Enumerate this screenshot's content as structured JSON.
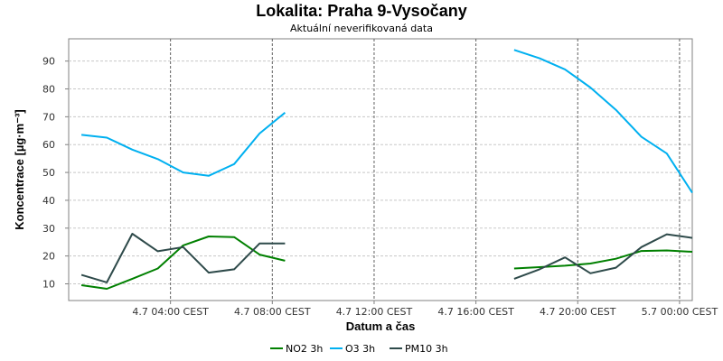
{
  "chart_data": {
    "type": "line",
    "title": "Lokalita: Praha 9-Vysočany",
    "subtitle": "Aktuální neverifikovaná data",
    "xlabel": "Datum a čas",
    "ylabel": "Koncentrace [µg·m⁻³]",
    "ylim": [
      4,
      98
    ],
    "yticks": [
      10,
      20,
      30,
      40,
      50,
      60,
      70,
      80,
      90
    ],
    "xlim": [
      0,
      24.5
    ],
    "x_unit": "hours since 4.7 00:00 CEST",
    "xticks": [
      {
        "x": 4,
        "label": "4.7 04:00 CEST"
      },
      {
        "x": 8,
        "label": "4.7 08:00 CEST"
      },
      {
        "x": 12,
        "label": "4.7 12:00 CEST"
      },
      {
        "x": 16,
        "label": "4.7 16:00 CEST"
      },
      {
        "x": 20,
        "label": "4.7 20:00 CEST"
      },
      {
        "x": 24,
        "label": "5.7 00:00 CEST"
      }
    ],
    "grid": true,
    "legend_position": "bottom",
    "series": [
      {
        "name": "NO2 3h",
        "color": "#008000",
        "segments": [
          {
            "x": [
              0.5,
              1.5,
              2.5,
              3.5,
              4.5,
              5.5,
              6.5,
              7.5,
              8.5
            ],
            "y": [
              9.5,
              8.2,
              11.8,
              15.5,
              23.8,
              27.0,
              26.8,
              20.5,
              18.3
            ]
          },
          {
            "x": [
              17.5,
              18.5,
              19.5,
              20.5,
              21.5,
              22.5,
              23.5,
              24.5
            ],
            "y": [
              15.5,
              16.0,
              16.5,
              17.3,
              19.0,
              21.8,
              22.0,
              21.5
            ]
          }
        ]
      },
      {
        "name": "O3 3h",
        "color": "#00b0f0",
        "segments": [
          {
            "x": [
              0.5,
              1.5,
              2.5,
              3.5,
              4.5,
              5.5,
              6.5,
              7.5,
              8.5
            ],
            "y": [
              63.5,
              62.5,
              58.2,
              54.8,
              50.0,
              48.8,
              53.0,
              64.0,
              71.5
            ]
          },
          {
            "x": [
              17.5,
              18.5,
              19.5,
              20.5,
              21.5,
              22.5,
              23.5,
              24.5
            ],
            "y": [
              94.0,
              91.0,
              87.0,
              80.5,
              72.5,
              62.8,
              56.8,
              42.7
            ]
          }
        ]
      },
      {
        "name": "PM10 3h",
        "color": "#2e4a4a",
        "segments": [
          {
            "x": [
              0.5,
              1.5,
              2.5,
              3.5,
              4.5,
              5.5,
              6.5,
              7.5,
              8.5
            ],
            "y": [
              13.2,
              10.5,
              28.0,
              21.7,
              23.2,
              14.0,
              15.2,
              24.5,
              24.5
            ]
          },
          {
            "x": [
              17.5,
              18.5,
              19.5,
              20.5,
              21.5,
              22.5,
              23.5,
              24.5
            ],
            "y": [
              11.8,
              15.2,
              19.5,
              13.8,
              15.8,
              23.2,
              27.8,
              26.5
            ]
          }
        ]
      }
    ]
  }
}
